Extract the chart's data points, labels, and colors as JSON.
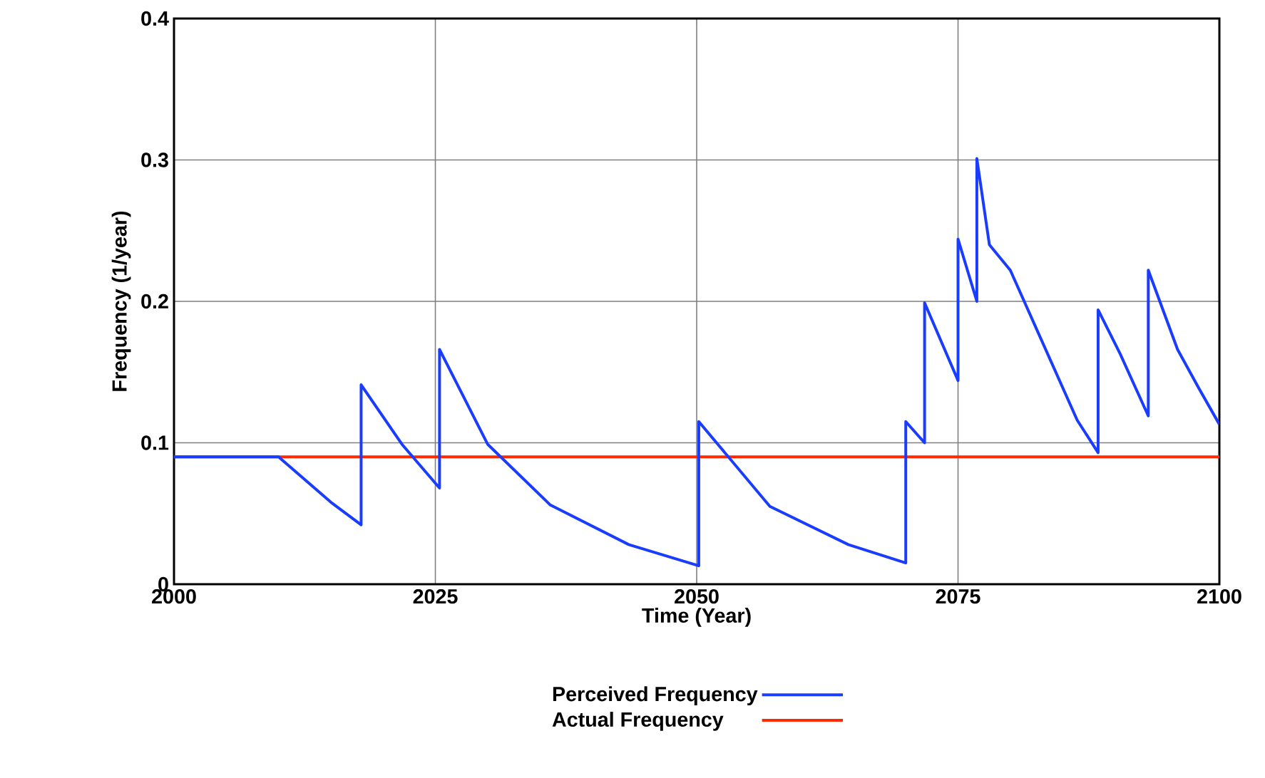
{
  "chart_data": {
    "type": "line",
    "xlabel": "Time (Year)",
    "ylabel": "Frequency (1/year)",
    "xlim": [
      2000,
      2100
    ],
    "ylim": [
      0,
      0.4
    ],
    "xticks": [
      2000,
      2025,
      2050,
      2075,
      2100
    ],
    "yticks": [
      0,
      0.1,
      0.2,
      0.3,
      0.4
    ],
    "grid": true,
    "legend": "bottom",
    "line_style": "solid",
    "series": [
      {
        "name": "Perceived Frequency",
        "color": "#1a3cff",
        "x": [
          2000,
          2010,
          2015,
          2017.9,
          2017.9,
          2021.8,
          2025.4,
          2025.4,
          2030,
          2036,
          2043.5,
          2050.2,
          2050.2,
          2057,
          2064.5,
          2070,
          2070,
          2071.8,
          2071.8,
          2075,
          2075,
          2076.8,
          2076.8,
          2078,
          2080,
          2086.4,
          2088.4,
          2088.4,
          2090.5,
          2093.2,
          2093.2,
          2096,
          2098,
          2100
        ],
        "values": [
          0.09,
          0.09,
          0.058,
          0.042,
          0.141,
          0.099,
          0.068,
          0.166,
          0.099,
          0.056,
          0.028,
          0.013,
          0.115,
          0.055,
          0.028,
          0.015,
          0.115,
          0.1,
          0.199,
          0.144,
          0.244,
          0.2,
          0.301,
          0.24,
          0.222,
          0.116,
          0.093,
          0.194,
          0.163,
          0.119,
          0.222,
          0.166,
          0.139,
          0.113
        ]
      },
      {
        "name": "Actual Frequency",
        "color": "#ff2a00",
        "x": [
          2000,
          2100
        ],
        "values": [
          0.09,
          0.09
        ]
      }
    ]
  }
}
